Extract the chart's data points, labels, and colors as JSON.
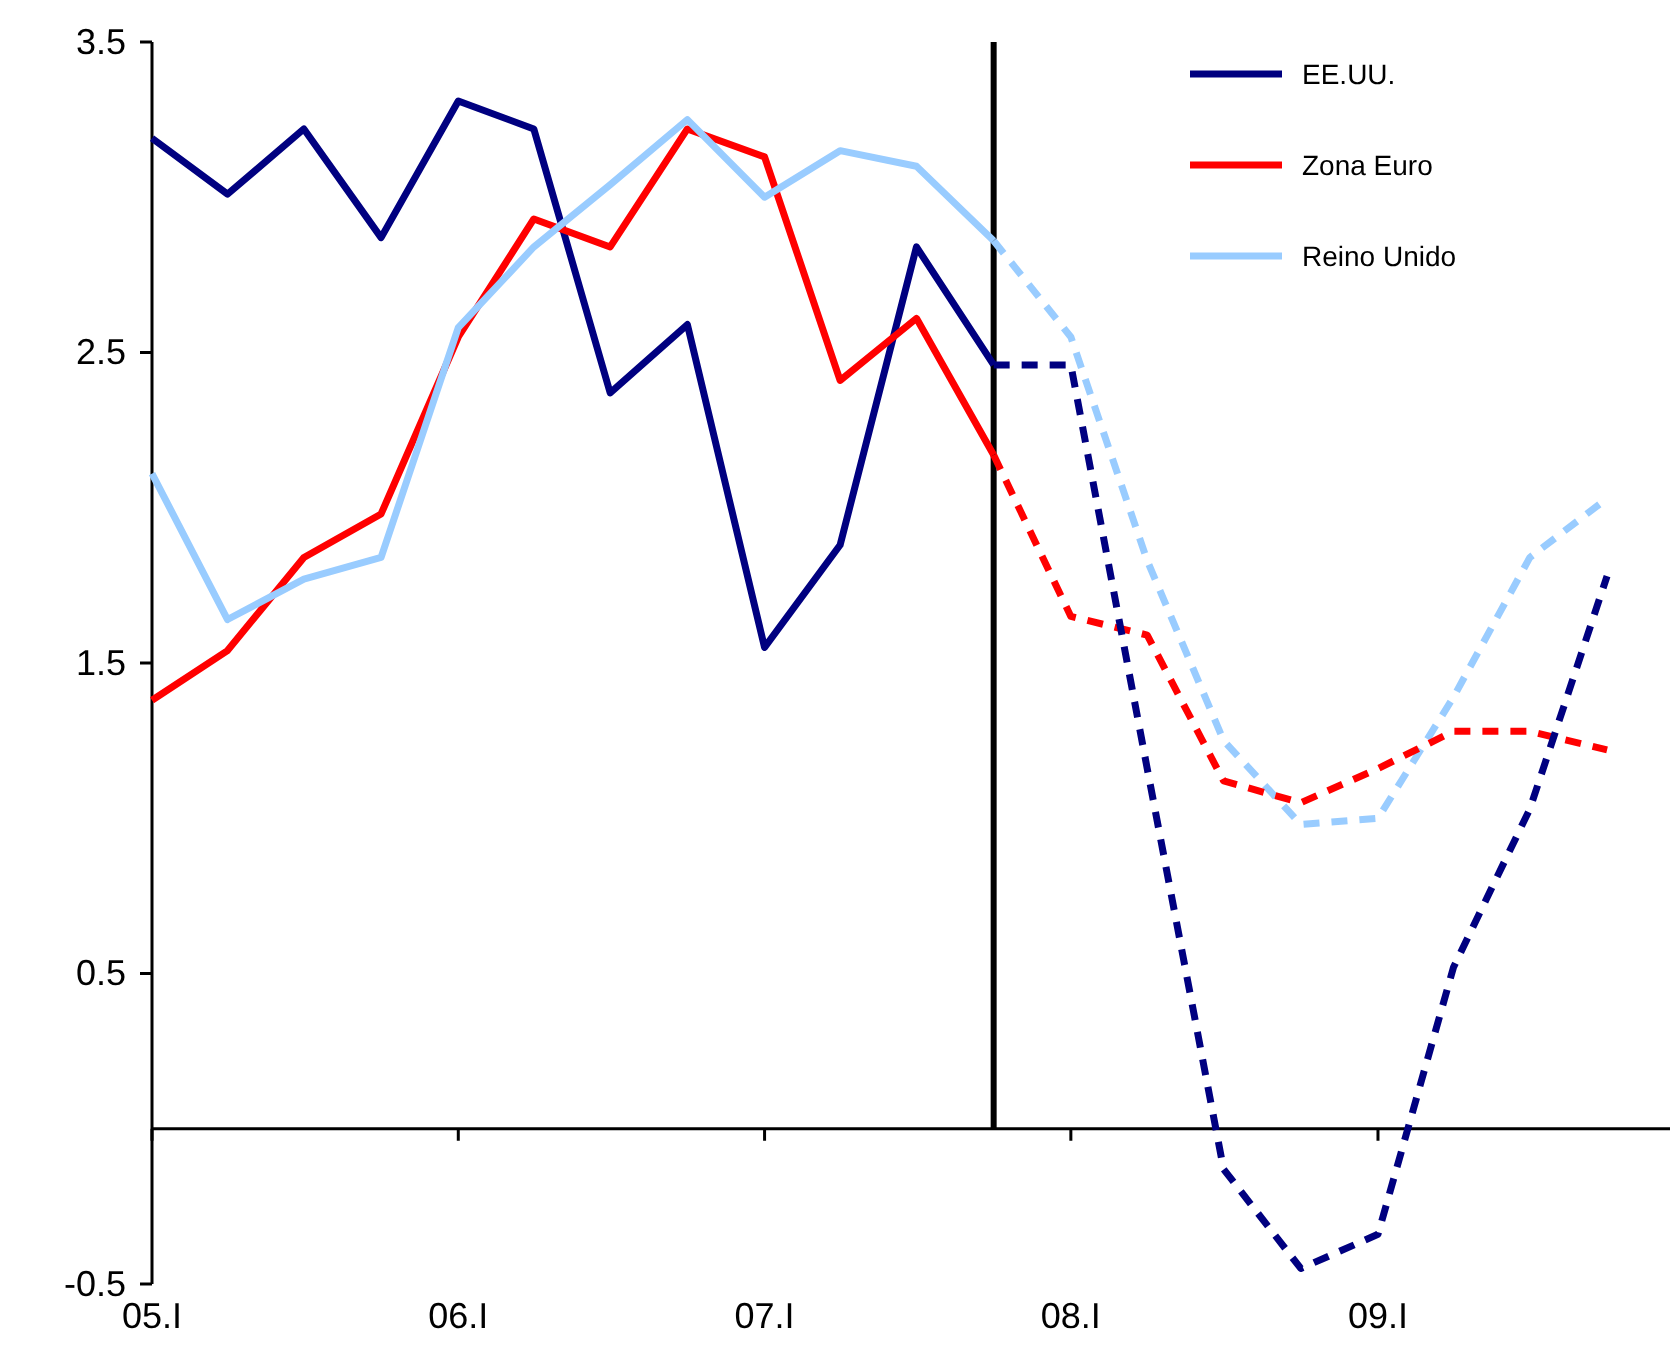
{
  "chart_data": {
    "type": "line",
    "x": [
      "2005-01",
      "2005-04",
      "2005-07",
      "2005-10",
      "2006-01",
      "2006-04",
      "2006-07",
      "2006-10",
      "2007-01",
      "2007-04",
      "2007-07",
      "2007-10",
      "2008-01",
      "2008-04",
      "2008-07",
      "2008-10",
      "2009-01",
      "2009-04",
      "2009-07",
      "2009-10"
    ],
    "xlim": [
      "2005-01",
      "2009-12-15"
    ],
    "xticks": [
      {
        "value": "2005-01",
        "label": "05.I"
      },
      {
        "value": "2006-01",
        "label": "06.I"
      },
      {
        "value": "2007-01",
        "label": "07.I"
      },
      {
        "value": "2008-01",
        "label": "08.I"
      },
      {
        "value": "2009-01",
        "label": "09.I"
      }
    ],
    "ylim": [
      -0.5,
      3.5
    ],
    "yticks": [
      -0.5,
      0.5,
      1.5,
      2.5,
      3.5
    ],
    "grid": false,
    "legend": "top right",
    "marker": "none",
    "ref_lines": [
      {
        "axis": "x",
        "value": "2007-10",
        "color": "#000000",
        "line_style": "solid"
      }
    ],
    "series": [
      {
        "name": "EE.UU.",
        "color": "#000080",
        "line_style": "solid",
        "values": [
          3.19,
          3.01,
          3.22,
          2.87,
          3.31,
          3.22,
          2.37,
          2.59,
          1.55,
          1.88,
          2.84,
          2.46,
          null,
          null,
          null,
          null,
          null,
          null,
          null,
          null
        ]
      },
      {
        "name": "Zona Euro",
        "color": "#ff0000",
        "line_style": "solid",
        "values": [
          1.38,
          1.54,
          1.84,
          1.98,
          2.55,
          2.93,
          2.84,
          3.22,
          3.13,
          2.41,
          2.61,
          2.17,
          null,
          null,
          null,
          null,
          null,
          null,
          null,
          null
        ]
      },
      {
        "name": "Reino Unido",
        "color": "#99ccff",
        "line_style": "solid",
        "values": [
          2.11,
          1.64,
          1.77,
          1.84,
          2.58,
          2.84,
          3.04,
          3.25,
          3.0,
          3.15,
          3.1,
          2.86,
          null,
          null,
          null,
          null,
          null,
          null,
          null,
          null
        ]
      },
      {
        "color": "#99ccff",
        "line_style": "dashed",
        "values": [
          null,
          null,
          null,
          null,
          null,
          null,
          null,
          null,
          null,
          null,
          null,
          2.86,
          2.55,
          1.83,
          1.25,
          0.98,
          1.0,
          1.39,
          1.84,
          2.03
        ]
      },
      {
        "color": "#ff0000",
        "line_style": "dashed",
        "values": [
          null,
          null,
          null,
          null,
          null,
          null,
          null,
          null,
          null,
          null,
          null,
          2.17,
          1.65,
          1.59,
          1.12,
          1.05,
          1.16,
          1.28,
          1.28,
          1.22
        ]
      },
      {
        "color": "#000080",
        "line_style": "dashed",
        "values": [
          null,
          null,
          null,
          null,
          null,
          null,
          null,
          null,
          null,
          null,
          null,
          2.46,
          2.46,
          1.16,
          -0.13,
          -0.45,
          -0.34,
          0.52,
          1.03,
          1.78
        ]
      }
    ]
  }
}
